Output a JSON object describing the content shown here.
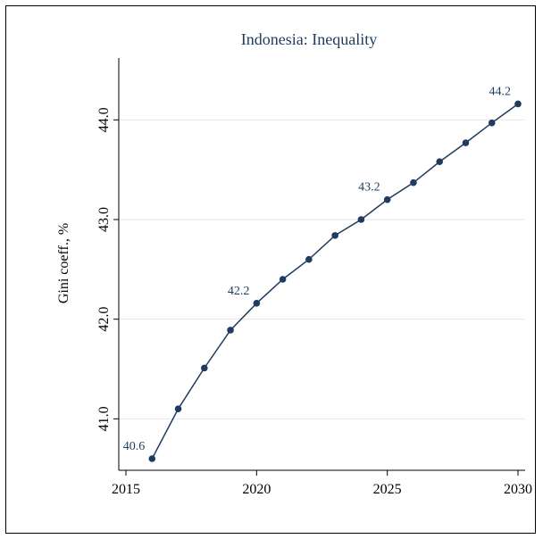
{
  "chart_data": {
    "type": "line",
    "title": "Indonesia: Inequality",
    "xlabel": "",
    "ylabel": "Gini coeff., %",
    "x_ticks": [
      2015,
      2020,
      2025,
      2030
    ],
    "y_ticks": [
      "41.0",
      "42.0",
      "43.0",
      "44.0"
    ],
    "xlim": [
      2015,
      2030
    ],
    "ylim": [
      40.6,
      44.2
    ],
    "grid": true,
    "legend": "none",
    "colors": {
      "line": "#1f3b5e",
      "grid": "#e6e6e6",
      "axis": "#000000"
    },
    "series": [
      {
        "x": [
          2016,
          2017,
          2018,
          2019,
          2020,
          2021,
          2022,
          2023,
          2024,
          2025,
          2026,
          2027,
          2028,
          2029,
          2030
        ],
        "values": [
          40.6,
          41.1,
          41.51,
          41.89,
          42.16,
          42.4,
          42.6,
          42.84,
          43.0,
          43.2,
          43.37,
          43.58,
          43.77,
          43.97,
          44.16
        ]
      }
    ],
    "annotations": [
      {
        "x": 2016,
        "y": 40.6,
        "text": "40.6"
      },
      {
        "x": 2020,
        "y": 42.16,
        "text": "42.2"
      },
      {
        "x": 2025,
        "y": 43.2,
        "text": "43.2"
      },
      {
        "x": 2030,
        "y": 44.16,
        "text": "44.2"
      }
    ]
  }
}
